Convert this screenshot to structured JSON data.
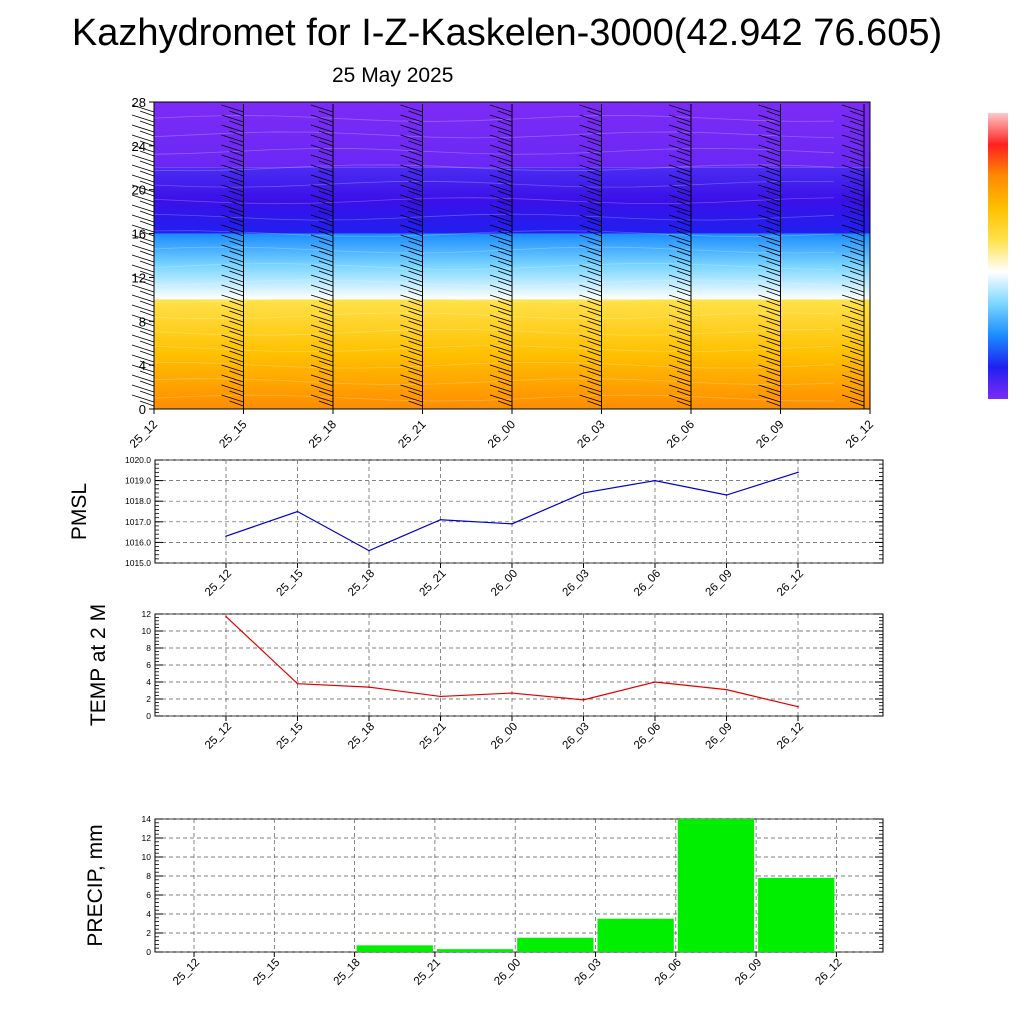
{
  "header": {
    "title": "Kazhydromet for I-Z-Kaskelen-3000(42.942 76.605)",
    "date": "25 May 2025"
  },
  "chart_data": [
    {
      "type": "heatmap",
      "title": "",
      "ylabel": "",
      "ylim": [
        0,
        28
      ],
      "yticks": [
        0,
        4,
        8,
        12,
        16,
        20,
        24,
        28
      ],
      "categories": [
        "25_12",
        "25_15",
        "25_18",
        "25_21",
        "26_00",
        "26_03",
        "26_06",
        "26_09",
        "26_12"
      ],
      "bands": [
        {
          "from": 0,
          "to": 10,
          "colors": [
            "#ff8c00",
            "#ffc000",
            "#ffe24a"
          ]
        },
        {
          "from": 10,
          "to": 16,
          "colors": [
            "#ffffff",
            "#7cd6ff",
            "#1a8cff"
          ]
        },
        {
          "from": 16,
          "to": 22,
          "colors": [
            "#2020f0",
            "#3a10e8",
            "#4b2cf2"
          ]
        },
        {
          "from": 22,
          "to": 28,
          "colors": [
            "#6a28f5",
            "#7d2bf6"
          ]
        }
      ],
      "colorbar": [
        "#7d2bf6",
        "#2020f0",
        "#1a8cff",
        "#7cd6ff",
        "#ffffff",
        "#ffe24a",
        "#ffc000",
        "#ff8c00",
        "#ff2020",
        "#ffc8c8"
      ],
      "wind_barbs": true,
      "grid": false
    },
    {
      "type": "line",
      "title": "",
      "ylabel": "PMSL",
      "categories": [
        "25_12",
        "25_15",
        "25_18",
        "25_21",
        "26_00",
        "26_03",
        "26_06",
        "26_09",
        "26_12"
      ],
      "values": [
        1016.3,
        1017.5,
        1015.6,
        1017.1,
        1016.9,
        1018.4,
        1019.0,
        1018.3,
        1019.4
      ],
      "ylim": [
        1015.0,
        1020.0
      ],
      "yticks": [
        "1015.0",
        "1016.0",
        "1017.0",
        "1018.0",
        "1019.0",
        "1020.0"
      ],
      "color": "#0000cc",
      "grid": true
    },
    {
      "type": "line",
      "title": "",
      "ylabel": "TEMP at 2 M",
      "categories": [
        "25_12",
        "25_15",
        "25_18",
        "25_21",
        "26_00",
        "26_03",
        "26_06",
        "26_09",
        "26_12"
      ],
      "values": [
        11.7,
        3.8,
        3.4,
        2.3,
        2.7,
        1.9,
        4.0,
        3.1,
        1.1
      ],
      "ylim": [
        0,
        12
      ],
      "yticks": [
        "0",
        "2",
        "4",
        "6",
        "8",
        "10",
        "12"
      ],
      "color": "#e00000",
      "grid": true
    },
    {
      "type": "bar",
      "title": "",
      "ylabel": "PRECIP, mm",
      "categories": [
        "25_12",
        "25_15",
        "25_18",
        "25_21",
        "26_00",
        "26_03",
        "26_06",
        "26_09",
        "26_12"
      ],
      "values": [
        0,
        0,
        0,
        0.7,
        0.3,
        1.5,
        3.5,
        14.0,
        7.8
      ],
      "ylim": [
        0,
        14
      ],
      "yticks": [
        "0",
        "2",
        "4",
        "6",
        "8",
        "10",
        "12",
        "14"
      ],
      "color": "#00ee00",
      "grid": true
    }
  ]
}
